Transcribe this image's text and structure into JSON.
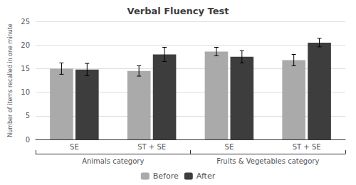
{
  "chart_data": {
    "type": "bar",
    "title": "Verbal Fluency Test",
    "ylabel": "Number of items recalled in one minute",
    "categories": [
      "SE",
      "ST + SE",
      "SE",
      "ST + SE"
    ],
    "annotations": [
      "Animals category",
      "Fruits & Vegetables category"
    ],
    "series": [
      {
        "name": "Before",
        "color": "#aaaaaa",
        "values": [
          15.0,
          14.5,
          18.6,
          16.8
        ],
        "errors": [
          1.2,
          1.1,
          0.9,
          1.2
        ]
      },
      {
        "name": "After",
        "color": "#3d3d3d",
        "values": [
          14.8,
          18.0,
          17.5,
          20.5
        ],
        "errors": [
          1.3,
          1.5,
          1.3,
          0.9
        ]
      }
    ],
    "ylim": [
      0,
      25
    ],
    "yticks": [
      0,
      5,
      10,
      15,
      20,
      25
    ],
    "grid": true,
    "legend": "bottom"
  }
}
